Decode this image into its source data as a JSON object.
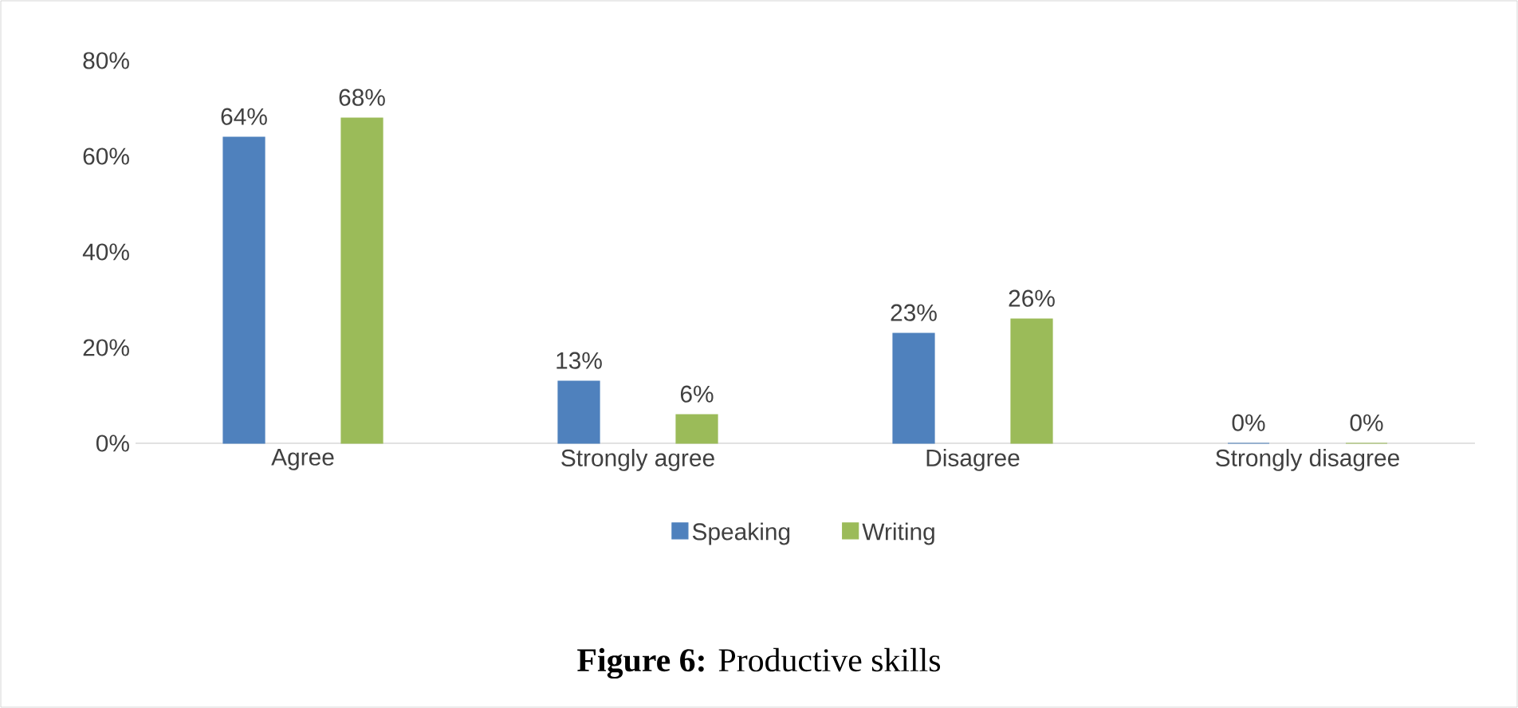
{
  "chart_data": {
    "type": "bar",
    "title": "**Figure 6:** Productive skills",
    "categories": [
      "Agree",
      "Strongly agree",
      "Disagree",
      "Strongly disagree"
    ],
    "series": [
      {
        "name": "Speaking",
        "color": "#4f81bd",
        "values": [
          64,
          13,
          23,
          0
        ],
        "value_labels": [
          "64%",
          "13%",
          "23%",
          "0%"
        ]
      },
      {
        "name": "Writing",
        "color": "#9bbb59",
        "values": [
          68,
          6,
          26,
          0
        ],
        "value_labels": [
          "68%",
          "6%",
          "26%",
          "0%"
        ]
      }
    ],
    "ylim": [
      0,
      80
    ],
    "yticks": [
      {
        "value": 0,
        "label": "0%"
      },
      {
        "value": 20,
        "label": "20%"
      },
      {
        "value": 40,
        "label": "40%"
      },
      {
        "value": 60,
        "label": "60%"
      },
      {
        "value": 80,
        "label": "80%"
      }
    ],
    "legend": "bottom"
  }
}
